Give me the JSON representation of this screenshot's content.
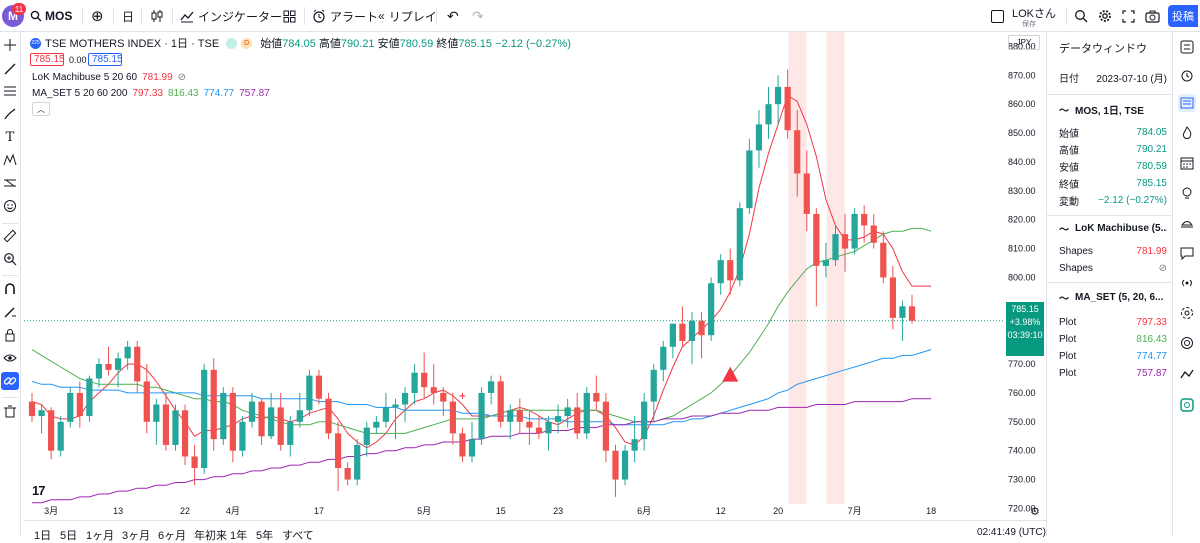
{
  "toolbar": {
    "avatar_letter": "M",
    "notif_count": "11",
    "symbol": "MOS",
    "interval": "日",
    "indicators_label": "インジケーター",
    "alert_label": "アラート",
    "replay_label": "リプレイ",
    "user_name": "LOKさん",
    "saved_label": "保存",
    "post_label": "投稿"
  },
  "legend": {
    "symbol_badge": "225",
    "title": "TSE MOTHERS INDEX · 1日 · TSE",
    "dot2": "D",
    "open_label": "始値",
    "open": "784.05",
    "high_label": "高値",
    "high": "790.21",
    "low_label": "安値",
    "low": "780.59",
    "close_label": "終値",
    "close": "785.15",
    "change": "−2.12 (−0.27%)",
    "bid": "785.15",
    "spread": "0.00",
    "ask": "785.15"
  },
  "indicators": {
    "machibuse_name": "LoK Machibuse 5 20 60",
    "machibuse_value": "781.99",
    "maset_name": "MA_SET 5 20 60 200",
    "maset_values": [
      "797.33",
      "816.43",
      "774.77",
      "757.87"
    ],
    "maset_colors": [
      "#f23645",
      "#4caf50",
      "#2196f3",
      "#9c27b0"
    ]
  },
  "axis": {
    "currency": "JPY",
    "y_ticks": [
      "880.00",
      "870.00",
      "860.00",
      "850.00",
      "840.00",
      "830.00",
      "820.00",
      "810.00",
      "800.00",
      "790.00",
      "780.00",
      "770.00",
      "760.00",
      "750.00",
      "740.00",
      "730.00",
      "720.00"
    ],
    "x_ticks": [
      "3月",
      "13",
      "22",
      "4月",
      "17",
      "5月",
      "15",
      "23",
      "6月",
      "12",
      "20",
      "7月",
      "18"
    ],
    "price_label": [
      "785.15",
      "+3.98%",
      "03:39:10"
    ],
    "time": "02:41:49 (UTC)"
  },
  "periods": [
    "1日",
    "5日",
    "1ヶ月",
    "3ヶ月",
    "6ヶ月",
    "年初来",
    "1年",
    "5年",
    "すべて"
  ],
  "data_window": {
    "title": "データウィンドウ",
    "date_label": "日付",
    "date_value": "2023-07-10 (月)",
    "series_header": "MOS, 1日, TSE",
    "rows": [
      {
        "label": "始値",
        "value": "784.05"
      },
      {
        "label": "高値",
        "value": "790.21"
      },
      {
        "label": "安値",
        "value": "780.59"
      },
      {
        "label": "終値",
        "value": "785.15"
      },
      {
        "label": "変動",
        "value": "−2.12 (−0.27%)"
      }
    ],
    "machibuse_header": "LoK Machibuse (5...",
    "machibuse_rows": [
      {
        "label": "Shapes",
        "value": "781.99"
      },
      {
        "label": "Shapes",
        "value": "⊘"
      }
    ],
    "maset_header": "MA_SET (5, 20, 6...",
    "maset_rows": [
      {
        "label": "Plot",
        "value": "797.33"
      },
      {
        "label": "Plot",
        "value": "816.43"
      },
      {
        "label": "Plot",
        "value": "774.77"
      },
      {
        "label": "Plot",
        "value": "757.87"
      }
    ]
  },
  "chart_data": {
    "type": "candlestick",
    "ylim": [
      716,
      885
    ],
    "y_step": 10,
    "x_tick_index": [
      2,
      9,
      16,
      21,
      30,
      41,
      49,
      55,
      64,
      72,
      78,
      86,
      94
    ],
    "highlight_bands": [
      79.5,
      83.5
    ],
    "up_color": "#26a69a",
    "down_color": "#ef5350",
    "candles": [
      [
        757,
        760,
        750,
        752
      ],
      [
        752,
        756,
        746,
        754
      ],
      [
        754,
        755,
        737,
        740
      ],
      [
        740,
        752,
        738,
        750
      ],
      [
        750,
        762,
        748,
        760
      ],
      [
        760,
        764,
        748,
        752
      ],
      [
        752,
        766,
        750,
        765
      ],
      [
        765,
        772,
        762,
        770
      ],
      [
        770,
        776,
        766,
        768
      ],
      [
        768,
        774,
        762,
        772
      ],
      [
        772,
        778,
        768,
        776
      ],
      [
        776,
        778,
        760,
        764
      ],
      [
        764,
        770,
        746,
        750
      ],
      [
        750,
        758,
        742,
        756
      ],
      [
        756,
        760,
        740,
        742
      ],
      [
        742,
        756,
        740,
        754
      ],
      [
        754,
        756,
        735,
        738
      ],
      [
        738,
        742,
        728,
        734
      ],
      [
        734,
        770,
        732,
        768
      ],
      [
        768,
        772,
        740,
        744
      ],
      [
        744,
        762,
        742,
        760
      ],
      [
        760,
        762,
        736,
        740
      ],
      [
        740,
        752,
        738,
        750
      ],
      [
        750,
        760,
        748,
        757
      ],
      [
        757,
        758,
        742,
        745
      ],
      [
        745,
        760,
        744,
        755
      ],
      [
        755,
        760,
        740,
        742
      ],
      [
        742,
        752,
        738,
        750
      ],
      [
        750,
        760,
        748,
        754
      ],
      [
        754,
        768,
        752,
        766
      ],
      [
        766,
        768,
        756,
        758
      ],
      [
        758,
        760,
        744,
        746
      ],
      [
        746,
        750,
        726,
        734
      ],
      [
        734,
        736,
        728,
        730
      ],
      [
        730,
        744,
        728,
        742
      ],
      [
        742,
        750,
        738,
        748
      ],
      [
        748,
        752,
        746,
        750
      ],
      [
        750,
        760,
        748,
        755
      ],
      [
        755,
        758,
        744,
        756
      ],
      [
        756,
        762,
        750,
        760
      ],
      [
        760,
        770,
        756,
        767
      ],
      [
        767,
        774,
        758,
        762
      ],
      [
        762,
        770,
        756,
        760
      ],
      [
        760,
        762,
        752,
        757
      ],
      [
        757,
        760,
        742,
        746
      ],
      [
        746,
        748,
        736,
        738
      ],
      [
        738,
        750,
        736,
        744
      ],
      [
        744,
        762,
        742,
        760
      ],
      [
        760,
        766,
        756,
        764
      ],
      [
        764,
        766,
        748,
        750
      ],
      [
        750,
        756,
        744,
        754
      ],
      [
        754,
        758,
        746,
        750
      ],
      [
        750,
        754,
        742,
        748
      ],
      [
        748,
        752,
        744,
        746
      ],
      [
        746,
        752,
        740,
        750
      ],
      [
        750,
        756,
        746,
        752
      ],
      [
        752,
        758,
        748,
        755
      ],
      [
        755,
        760,
        744,
        746
      ],
      [
        746,
        762,
        744,
        760
      ],
      [
        760,
        766,
        754,
        757
      ],
      [
        757,
        760,
        736,
        740
      ],
      [
        740,
        742,
        724,
        730
      ],
      [
        730,
        742,
        728,
        740
      ],
      [
        740,
        752,
        736,
        744
      ],
      [
        744,
        760,
        740,
        757
      ],
      [
        757,
        770,
        750,
        768
      ],
      [
        768,
        778,
        764,
        776
      ],
      [
        776,
        784,
        772,
        784
      ],
      [
        784,
        790,
        776,
        778
      ],
      [
        778,
        788,
        770,
        785
      ],
      [
        785,
        788,
        772,
        780
      ],
      [
        780,
        800,
        778,
        798
      ],
      [
        798,
        808,
        794,
        806
      ],
      [
        806,
        810,
        794,
        799
      ],
      [
        799,
        826,
        797,
        824
      ],
      [
        824,
        848,
        822,
        844
      ],
      [
        844,
        858,
        838,
        853
      ],
      [
        853,
        866,
        848,
        860
      ],
      [
        860,
        870,
        853,
        866
      ],
      [
        866,
        872,
        848,
        851
      ],
      [
        851,
        858,
        828,
        836
      ],
      [
        836,
        844,
        816,
        822
      ],
      [
        822,
        824,
        790,
        804
      ],
      [
        804,
        812,
        800,
        806
      ],
      [
        806,
        818,
        804,
        815
      ],
      [
        815,
        822,
        802,
        810
      ],
      [
        810,
        824,
        808,
        822
      ],
      [
        822,
        825,
        812,
        818
      ],
      [
        818,
        822,
        810,
        812
      ],
      [
        812,
        816,
        798,
        800
      ],
      [
        800,
        804,
        782,
        786
      ],
      [
        786,
        792,
        778,
        790
      ],
      [
        790,
        794,
        784,
        785
      ]
    ],
    "series": [
      {
        "name": "MA5",
        "color": "#f23645",
        "values": [
          757,
          756,
          752,
          751,
          751,
          752,
          757,
          760,
          763,
          767,
          770,
          770,
          768,
          764,
          759,
          754,
          750,
          745,
          747,
          747,
          748,
          749,
          751,
          752,
          751,
          752,
          751,
          750,
          751,
          753,
          754,
          755,
          751,
          746,
          743,
          741,
          743,
          746,
          751,
          754,
          757,
          758,
          760,
          761,
          759,
          756,
          752,
          752,
          752,
          753,
          754,
          755,
          754,
          752,
          750,
          749,
          751,
          753,
          754,
          754,
          752,
          748,
          743,
          742,
          745,
          752,
          761,
          769,
          776,
          779,
          782,
          785,
          789,
          795,
          803,
          815,
          831,
          843,
          853,
          863,
          861,
          853,
          842,
          827,
          818,
          813,
          813,
          814,
          816,
          815,
          810,
          802,
          797,
          797,
          797
        ]
      },
      {
        "name": "MA20",
        "color": "#4caf50",
        "values": [
          775,
          773,
          771,
          769,
          767,
          765,
          764,
          763,
          763,
          763,
          763,
          763,
          762,
          762,
          761,
          760,
          759,
          758,
          758,
          757,
          757,
          756,
          754,
          753,
          752,
          751,
          750,
          749,
          749,
          749,
          750,
          750,
          749,
          748,
          747,
          746,
          746,
          746,
          746,
          746,
          747,
          748,
          749,
          750,
          751,
          751,
          751,
          751,
          752,
          753,
          754,
          754,
          754,
          754,
          754,
          754,
          754,
          754,
          754,
          754,
          753,
          752,
          751,
          750,
          750,
          750,
          751,
          752,
          754,
          756,
          758,
          760,
          763,
          766,
          770,
          774,
          779,
          784,
          790,
          795,
          799,
          803,
          805,
          806,
          807,
          808,
          809,
          811,
          813,
          815,
          816,
          816,
          817,
          817,
          816
        ]
      },
      {
        "name": "MA60",
        "color": "#2196f3",
        "values": [
          764,
          763,
          763,
          762,
          762,
          762,
          761,
          761,
          761,
          761,
          760,
          760,
          760,
          760,
          760,
          760,
          760,
          760,
          759,
          759,
          759,
          759,
          759,
          759,
          758,
          758,
          758,
          758,
          758,
          758,
          757,
          757,
          757,
          756,
          756,
          756,
          755,
          755,
          755,
          754,
          754,
          754,
          754,
          754,
          754,
          753,
          753,
          753,
          752,
          752,
          752,
          752,
          751,
          751,
          751,
          751,
          750,
          750,
          750,
          750,
          750,
          749,
          749,
          749,
          749,
          749,
          749,
          750,
          750,
          751,
          751,
          752,
          753,
          754,
          755,
          756,
          757,
          758,
          760,
          761,
          763,
          764,
          765,
          766,
          767,
          768,
          769,
          770,
          771,
          772,
          772,
          773,
          773,
          774,
          775
        ]
      },
      {
        "name": "MA200",
        "color": "#9c27b0",
        "values": [
          722,
          722,
          723,
          723,
          723,
          724,
          724,
          725,
          725,
          726,
          726,
          727,
          727,
          728,
          728,
          729,
          729,
          730,
          730,
          731,
          731,
          732,
          732,
          733,
          733,
          734,
          734,
          735,
          735,
          736,
          736,
          737,
          737,
          738,
          738,
          739,
          739,
          740,
          740,
          741,
          741,
          742,
          742,
          743,
          743,
          743,
          744,
          744,
          745,
          745,
          745,
          746,
          746,
          746,
          747,
          747,
          747,
          748,
          748,
          748,
          749,
          749,
          749,
          750,
          750,
          750,
          751,
          751,
          751,
          752,
          752,
          752,
          753,
          753,
          753,
          754,
          754,
          754,
          755,
          755,
          755,
          755,
          756,
          756,
          756,
          756,
          757,
          757,
          757,
          757,
          757,
          757,
          758,
          758,
          758
        ]
      }
    ],
    "triangle_markers": [
      [
        73,
        766
      ]
    ],
    "cross_markers": [
      [
        45,
        759
      ]
    ]
  }
}
